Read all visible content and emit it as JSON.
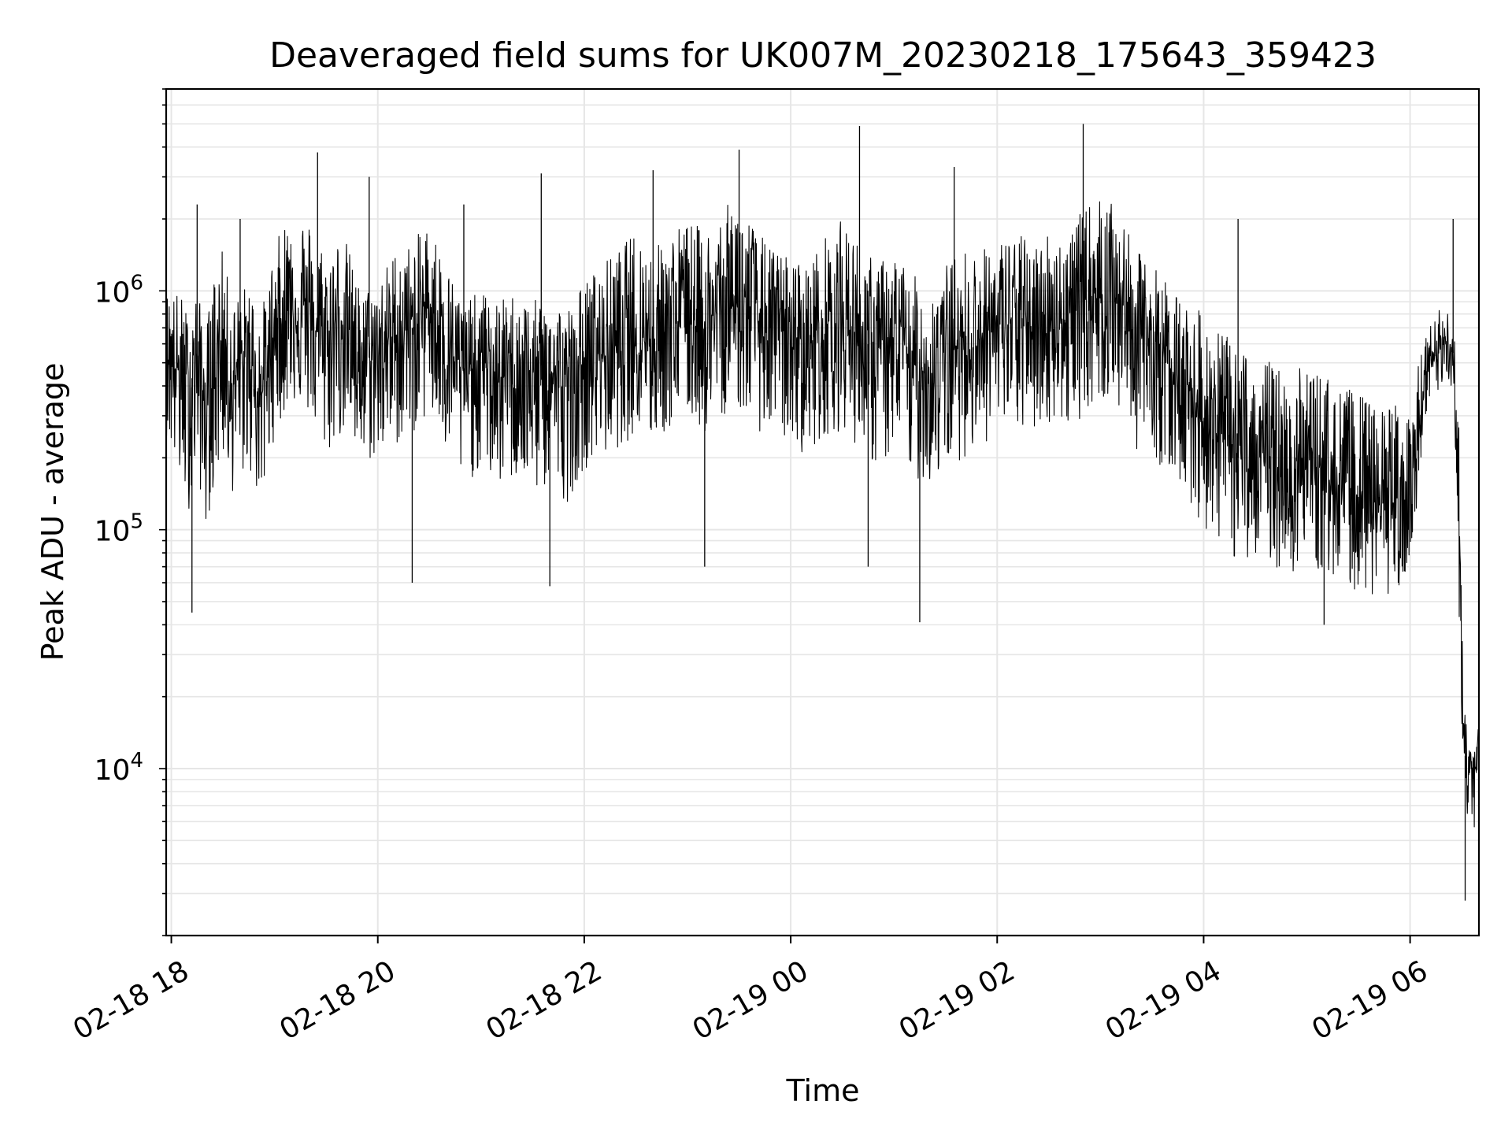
{
  "chart_data": {
    "type": "line",
    "title": "Deaveraged field sums for UK007M_20230218_175643_359423",
    "xlabel": "Time",
    "ylabel": "Peak ADU - average",
    "y_scale": "log",
    "ylim": [
      2000,
      7000000
    ],
    "xlim": [
      "2023-02-18 17:57",
      "2023-02-19 06:40"
    ],
    "grid": true,
    "line_color": "#000000",
    "grid_color": "#e6e6e6",
    "x_ticks": [
      {
        "value": "2023-02-18 18:00",
        "label": "02-18 18"
      },
      {
        "value": "2023-02-18 20:00",
        "label": "02-18 20"
      },
      {
        "value": "2023-02-18 22:00",
        "label": "02-18 22"
      },
      {
        "value": "2023-02-19 00:00",
        "label": "02-19 00"
      },
      {
        "value": "2023-02-19 02:00",
        "label": "02-19 02"
      },
      {
        "value": "2023-02-19 04:00",
        "label": "02-19 04"
      },
      {
        "value": "2023-02-19 06:00",
        "label": "02-19 06"
      }
    ],
    "y_ticks": [
      {
        "value": 10000,
        "base": "10",
        "exp": "4"
      },
      {
        "value": 100000,
        "base": "10",
        "exp": "5"
      },
      {
        "value": 1000000,
        "base": "10",
        "exp": "6"
      }
    ],
    "series": [
      {
        "x": [
          "2023-02-18 17:57",
          "2023-02-18 18:05",
          "2023-02-18 18:10",
          "2023-02-18 18:15",
          "2023-02-18 18:20",
          "2023-02-18 18:25",
          "2023-02-18 18:30",
          "2023-02-18 18:35",
          "2023-02-18 18:45",
          "2023-02-18 18:52",
          "2023-02-18 19:00",
          "2023-02-18 19:10",
          "2023-02-18 19:20",
          "2023-02-18 19:30",
          "2023-02-18 19:40",
          "2023-02-18 19:50",
          "2023-02-18 20:00",
          "2023-02-18 20:10",
          "2023-02-18 20:20",
          "2023-02-18 20:30",
          "2023-02-18 20:40",
          "2023-02-18 20:50",
          "2023-02-18 21:00",
          "2023-02-18 21:10",
          "2023-02-18 21:20",
          "2023-02-18 21:30",
          "2023-02-18 21:40",
          "2023-02-18 21:50",
          "2023-02-18 22:00",
          "2023-02-18 22:10",
          "2023-02-18 22:20",
          "2023-02-18 22:30",
          "2023-02-18 22:40",
          "2023-02-18 22:50",
          "2023-02-18 23:00",
          "2023-02-18 23:10",
          "2023-02-18 23:20",
          "2023-02-18 23:30",
          "2023-02-18 23:40",
          "2023-02-18 23:50",
          "2023-02-19 00:00",
          "2023-02-19 00:10",
          "2023-02-19 00:20",
          "2023-02-19 00:30",
          "2023-02-19 00:40",
          "2023-02-19 00:50",
          "2023-02-19 01:00",
          "2023-02-19 01:10",
          "2023-02-19 01:20",
          "2023-02-19 01:30",
          "2023-02-19 01:40",
          "2023-02-19 01:50",
          "2023-02-19 02:00",
          "2023-02-19 02:10",
          "2023-02-19 02:20",
          "2023-02-19 02:30",
          "2023-02-19 02:40",
          "2023-02-19 02:50",
          "2023-02-19 03:00",
          "2023-02-19 03:10",
          "2023-02-19 03:20",
          "2023-02-19 03:30",
          "2023-02-19 03:40",
          "2023-02-19 03:50",
          "2023-02-19 04:00",
          "2023-02-19 04:10",
          "2023-02-19 04:20",
          "2023-02-19 04:30",
          "2023-02-19 04:40",
          "2023-02-19 04:50",
          "2023-02-19 05:00",
          "2023-02-19 05:10",
          "2023-02-19 05:20",
          "2023-02-19 05:30",
          "2023-02-19 05:40",
          "2023-02-19 05:50",
          "2023-02-19 06:00",
          "2023-02-19 06:10",
          "2023-02-19 06:20",
          "2023-02-19 06:25",
          "2023-02-19 06:28",
          "2023-02-19 06:31",
          "2023-02-19 06:34",
          "2023-02-19 06:37",
          "2023-02-19 06:40"
        ],
        "y": [
          600000,
          450000,
          380000,
          520000,
          300000,
          480000,
          620000,
          400000,
          550000,
          350000,
          700000,
          900000,
          750000,
          600000,
          800000,
          500000,
          550000,
          650000,
          700000,
          900000,
          600000,
          450000,
          500000,
          420000,
          480000,
          400000,
          450000,
          380000,
          500000,
          550000,
          600000,
          700000,
          650000,
          750000,
          800000,
          700000,
          850000,
          900000,
          750000,
          700000,
          650000,
          600000,
          700000,
          750000,
          650000,
          550000,
          600000,
          500000,
          450000,
          550000,
          600000,
          650000,
          700000,
          750000,
          700000,
          800000,
          750000,
          900000,
          1000000,
          950000,
          700000,
          600000,
          500000,
          400000,
          300000,
          250000,
          200000,
          220000,
          180000,
          160000,
          200000,
          170000,
          150000,
          140000,
          120000,
          130000,
          140000,
          450000,
          600000,
          550000,
          200000,
          12000,
          10000,
          9000,
          14000
        ],
        "y_envelope_high": [
          1000000,
          1000000,
          800000,
          1000000,
          700000,
          1200000,
          1500000,
          900000,
          1100000,
          800000,
          1500000,
          2500000,
          2000000,
          1500000,
          1800000,
          1000000,
          1100000,
          1500000,
          1600000,
          2000000,
          1300000,
          900000,
          1000000,
          900000,
          1000000,
          900000,
          1000000,
          850000,
          1100000,
          1300000,
          1500000,
          1800000,
          1500000,
          1800000,
          2000000,
          1800000,
          2200000,
          2500000,
          1800000,
          1500000,
          1400000,
          1300000,
          1700000,
          2000000,
          1600000,
          1300000,
          1500000,
          1200000,
          1000000,
          1300000,
          1500000,
          1500000,
          1600000,
          1800000,
          1600000,
          1800000,
          1700000,
          2200000,
          2500000,
          2200000,
          1500000,
          1300000,
          1100000,
          900000,
          800000,
          700000,
          550000,
          600000,
          500000,
          450000,
          500000,
          450000,
          400000,
          380000,
          320000,
          350000,
          350000,
          700000,
          900000,
          800000,
          400000,
          18000,
          16000,
          14000,
          16000
        ],
        "y_envelope_low": [
          250000,
          150000,
          120000,
          180000,
          100000,
          150000,
          200000,
          140000,
          180000,
          120000,
          250000,
          350000,
          300000,
          200000,
          250000,
          180000,
          200000,
          220000,
          250000,
          300000,
          200000,
          150000,
          180000,
          150000,
          160000,
          140000,
          150000,
          130000,
          180000,
          200000,
          220000,
          250000,
          230000,
          260000,
          300000,
          250000,
          300000,
          320000,
          260000,
          250000,
          230000,
          200000,
          250000,
          260000,
          220000,
          180000,
          200000,
          170000,
          150000,
          180000,
          200000,
          220000,
          250000,
          260000,
          250000,
          280000,
          260000,
          300000,
          350000,
          320000,
          220000,
          200000,
          170000,
          140000,
          100000,
          90000,
          70000,
          80000,
          70000,
          65000,
          70000,
          65000,
          60000,
          55000,
          50000,
          55000,
          60000,
          300000,
          400000,
          350000,
          60000,
          8000,
          6000,
          5000,
          9000
        ]
      }
    ],
    "spikes": [
      {
        "x": "2023-02-18 18:12",
        "y": 45000
      },
      {
        "x": "2023-02-18 18:15",
        "y": 2300000
      },
      {
        "x": "2023-02-18 18:40",
        "y": 2000000
      },
      {
        "x": "2023-02-18 19:25",
        "y": 3800000
      },
      {
        "x": "2023-02-18 19:55",
        "y": 3000000
      },
      {
        "x": "2023-02-18 20:20",
        "y": 60000
      },
      {
        "x": "2023-02-18 20:50",
        "y": 2300000
      },
      {
        "x": "2023-02-18 21:35",
        "y": 3100000
      },
      {
        "x": "2023-02-18 21:40",
        "y": 58000
      },
      {
        "x": "2023-02-18 22:40",
        "y": 3200000
      },
      {
        "x": "2023-02-18 23:10",
        "y": 70000
      },
      {
        "x": "2023-02-18 23:30",
        "y": 3900000
      },
      {
        "x": "2023-02-19 00:40",
        "y": 4900000
      },
      {
        "x": "2023-02-19 00:45",
        "y": 70000
      },
      {
        "x": "2023-02-19 01:15",
        "y": 41000
      },
      {
        "x": "2023-02-19 01:35",
        "y": 3300000
      },
      {
        "x": "2023-02-19 02:50",
        "y": 5000000
      },
      {
        "x": "2023-02-19 04:20",
        "y": 2000000
      },
      {
        "x": "2023-02-19 05:10",
        "y": 40000
      },
      {
        "x": "2023-02-19 06:25",
        "y": 2000000
      },
      {
        "x": "2023-02-19 06:32",
        "y": 2800
      }
    ]
  }
}
